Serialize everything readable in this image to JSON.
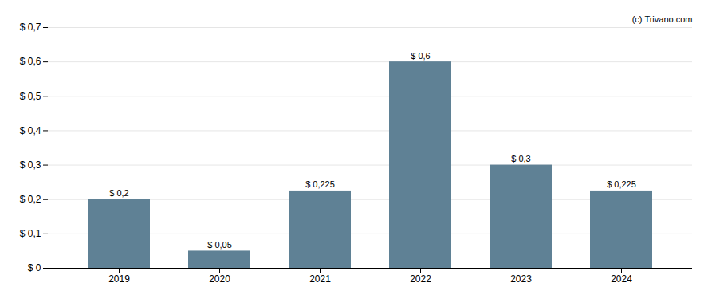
{
  "chart_data": {
    "type": "bar",
    "categories": [
      "2019",
      "2020",
      "2021",
      "2022",
      "2023",
      "2024"
    ],
    "values": [
      0.2,
      0.05,
      0.225,
      0.6,
      0.3,
      0.225
    ],
    "value_labels": [
      "$ 0,2",
      "$ 0,05",
      "$ 0,225",
      "$ 0,6",
      "$ 0,3",
      "$ 0,225"
    ],
    "data_labels": true,
    "color": "#5f8195",
    "ylim": [
      0,
      0.7
    ],
    "yticks": [
      {
        "value": 0,
        "label": "$ 0"
      },
      {
        "value": 0.1,
        "label": "$ 0,1"
      },
      {
        "value": 0.2,
        "label": "$ 0,2"
      },
      {
        "value": 0.3,
        "label": "$ 0,3"
      },
      {
        "value": 0.4,
        "label": "$ 0,4"
      },
      {
        "value": 0.5,
        "label": "$ 0,5"
      },
      {
        "value": 0.6,
        "label": "$ 0,6"
      },
      {
        "value": 0.7,
        "label": "$ 0,7"
      }
    ],
    "grid": true,
    "annotations": [
      "(c) Trivano.com"
    ]
  }
}
